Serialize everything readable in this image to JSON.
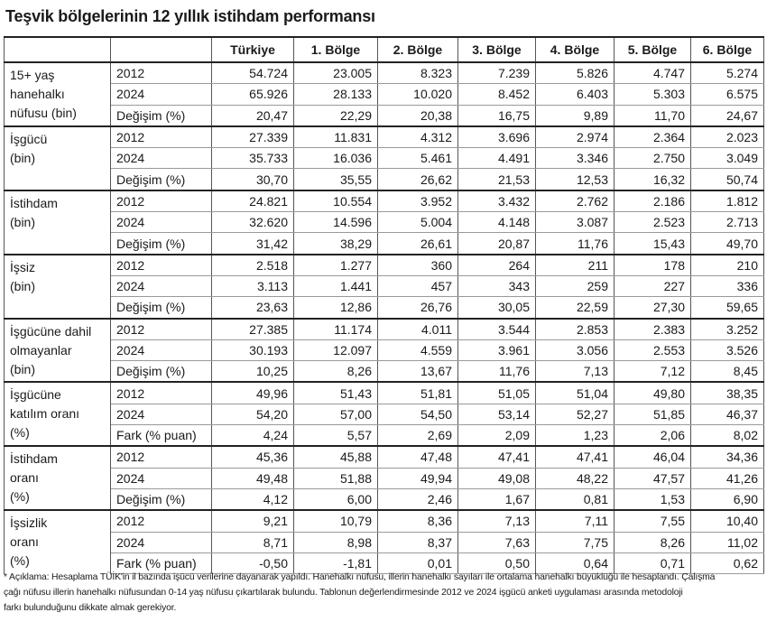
{
  "header": {
    "title": "Teşvik bölgelerinin 12 yıllık istihdam performansı"
  },
  "table": {
    "columns": [
      "Türkiye",
      "1. Bölge",
      "2. Bölge",
      "3. Bölge",
      "4. Bölge",
      "5. Bölge",
      "6. Bölge"
    ],
    "groups": [
      {
        "label": [
          "15+ yaş",
          "hanehalkı",
          "nüfusu (bin)"
        ],
        "rows": [
          [
            "2012",
            "54.724",
            "23.005",
            "8.323",
            "7.239",
            "5.826",
            "4.747",
            "5.274"
          ],
          [
            "2024",
            "65.926",
            "28.133",
            "10.020",
            "8.452",
            "6.403",
            "5.303",
            "6.575"
          ],
          [
            "Değişim (%)",
            "20,47",
            "22,29",
            "20,38",
            "16,75",
            "9,89",
            "11,70",
            "24,67"
          ]
        ]
      },
      {
        "label": [
          "İşgücü",
          "(bin)"
        ],
        "rows": [
          [
            "2012",
            "27.339",
            "11.831",
            "4.312",
            "3.696",
            "2.974",
            "2.364",
            "2.023"
          ],
          [
            "2024",
            "35.733",
            "16.036",
            "5.461",
            "4.491",
            "3.346",
            "2.750",
            "3.049"
          ],
          [
            "Değişim (%)",
            "30,70",
            "35,55",
            "26,62",
            "21,53",
            "12,53",
            "16,32",
            "50,74"
          ]
        ]
      },
      {
        "label": [
          "İstihdam",
          "(bin)"
        ],
        "rows": [
          [
            "2012",
            "24.821",
            "10.554",
            "3.952",
            "3.432",
            "2.762",
            "2.186",
            "1.812"
          ],
          [
            "2024",
            "32.620",
            "14.596",
            "5.004",
            "4.148",
            "3.087",
            "2.523",
            "2.713"
          ],
          [
            "Değişim (%)",
            "31,42",
            "38,29",
            "26,61",
            "20,87",
            "11,76",
            "15,43",
            "49,70"
          ]
        ]
      },
      {
        "label": [
          "İşsiz",
          "(bin)"
        ],
        "rows": [
          [
            "2012",
            "2.518",
            "1.277",
            "360",
            "264",
            "211",
            "178",
            "210"
          ],
          [
            "2024",
            "3.113",
            "1.441",
            "457",
            "343",
            "259",
            "227",
            "336"
          ],
          [
            "Değişim (%)",
            "23,63",
            "12,86",
            "26,76",
            "30,05",
            "22,59",
            "27,30",
            "59,65"
          ]
        ]
      },
      {
        "label": [
          "İşgücüne dahil",
          "olmayanlar",
          "(bin)"
        ],
        "rows": [
          [
            "2012",
            "27.385",
            "11.174",
            "4.011",
            "3.544",
            "2.853",
            "2.383",
            "3.252"
          ],
          [
            "2024",
            "30.193",
            "12.097",
            "4.559",
            "3.961",
            "3.056",
            "2.553",
            "3.526"
          ],
          [
            "Değişim (%)",
            "10,25",
            "8,26",
            "13,67",
            "11,76",
            "7,13",
            "7,12",
            "8,45"
          ]
        ]
      },
      {
        "label": [
          "İşgücüne",
          "katılım oranı",
          "(%)"
        ],
        "rows": [
          [
            "2012",
            "49,96",
            "51,43",
            "51,81",
            "51,05",
            "51,04",
            "49,80",
            "38,35"
          ],
          [
            "2024",
            "54,20",
            "57,00",
            "54,50",
            "53,14",
            "52,27",
            "51,85",
            "46,37"
          ],
          [
            "Fark (% puan)",
            "4,24",
            "5,57",
            "2,69",
            "2,09",
            "1,23",
            "2,06",
            "8,02"
          ]
        ]
      },
      {
        "label": [
          "İstihdam",
          "oranı",
          "(%)"
        ],
        "rows": [
          [
            "2012",
            "45,36",
            "45,88",
            "47,48",
            "47,41",
            "47,41",
            "46,04",
            "34,36"
          ],
          [
            "2024",
            "49,48",
            "51,88",
            "49,94",
            "49,08",
            "48,22",
            "47,57",
            "41,26"
          ],
          [
            "Değişim (%)",
            "4,12",
            "6,00",
            "2,46",
            "1,67",
            "0,81",
            "1,53",
            "6,90"
          ]
        ]
      },
      {
        "label": [
          "İşsizlik",
          "oranı",
          "(%)"
        ],
        "rows": [
          [
            "2012",
            "9,21",
            "10,79",
            "8,36",
            "7,13",
            "7,11",
            "7,55",
            "10,40"
          ],
          [
            "2024",
            "8,71",
            "8,98",
            "8,37",
            "7,63",
            "7,75",
            "8,26",
            "11,02"
          ],
          [
            "Fark (% puan)",
            "-0,50",
            "-1,81",
            "0,01",
            "0,50",
            "0,64",
            "0,71",
            "0,62"
          ]
        ]
      }
    ]
  },
  "footnote": [
    "* Açıklama: Hesaplama TÜİK'in il bazında işücü verilerine dayanarak yapıldı. Hanehalkı nüfusu, illerin hanehalkı sayıları ile ortalama hanehalkı büyüklüğü ile hesaplandı. Çalışma",
    "çağı nüfusu illerin hanehalkı nüfusundan 0-14 yaş nüfusu çıkartılarak bulundu. Tablonun değerlendirmesinde 2012 ve 2024 işgücü anketi uygulaması arasında metodoloji",
    "farkı bulunduğunu dikkate almak gerekiyor."
  ]
}
